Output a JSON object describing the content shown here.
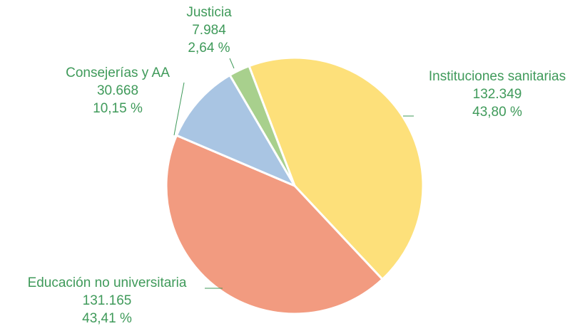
{
  "chart_data": {
    "type": "pie",
    "categories": [
      "Instituciones sanitarias",
      "Educación no universitaria",
      "Consejerías y AA",
      "Justicia"
    ],
    "values": [
      132349,
      131165,
      30668,
      7984
    ],
    "value_labels": [
      "132.349",
      "131.165",
      "30.668",
      "7.984"
    ],
    "percents": [
      43.8,
      43.41,
      10.15,
      2.64
    ],
    "percent_labels": [
      "43,80 %",
      "43,41 %",
      "10,15 %",
      "2,64 %"
    ],
    "colors": [
      "#fde07a",
      "#f29b80",
      "#a9c5e3",
      "#a8d08d"
    ],
    "label_color": "#3f9a5a"
  }
}
